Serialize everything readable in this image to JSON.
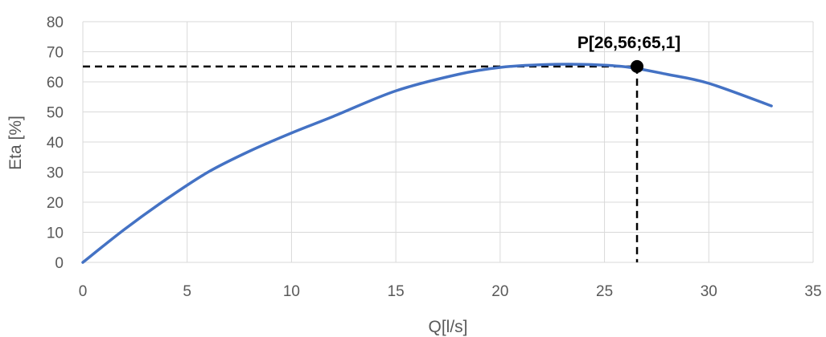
{
  "chart_data": {
    "type": "line",
    "xlabel": "Q[l/s]",
    "ylabel": "Eta [%]",
    "xlim": [
      0,
      35
    ],
    "ylim": [
      0,
      80
    ],
    "xticks": [
      "0",
      "5",
      "10",
      "15",
      "20",
      "25",
      "30",
      "35"
    ],
    "yticks": [
      "0",
      "10",
      "20",
      "30",
      "40",
      "50",
      "60",
      "70",
      "80"
    ],
    "grid": true,
    "series": [
      {
        "color": "#4472C4",
        "x": [
          0,
          2,
          4,
          6,
          8,
          10,
          12,
          15,
          18,
          20,
          22,
          24,
          26,
          28,
          30,
          33
        ],
        "y": [
          0,
          11,
          21,
          30,
          37,
          43,
          48.5,
          57,
          62.5,
          64.8,
          65.7,
          65.8,
          65,
          62.5,
          59.5,
          52
        ]
      }
    ],
    "annotations": [
      {
        "label": "P[26,56;65,1]",
        "x": 26.56,
        "y": 65.1,
        "marker_color": "#000000"
      }
    ]
  }
}
